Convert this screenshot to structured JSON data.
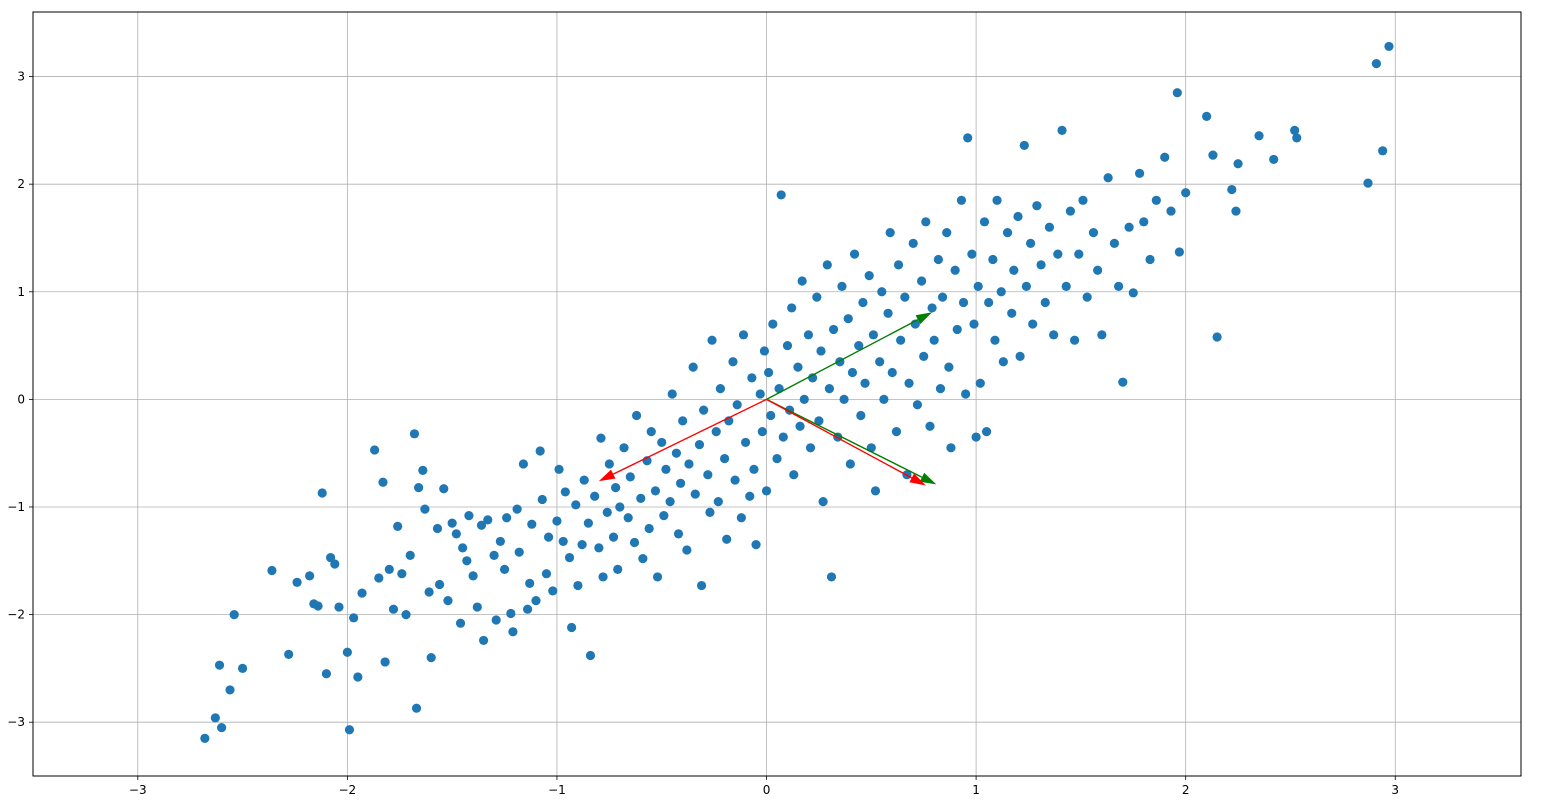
{
  "chart_data": {
    "type": "scatter",
    "title": "",
    "xlabel": "",
    "ylabel": "",
    "xlim": [
      -3.5,
      3.6
    ],
    "ylim": [
      -3.5,
      3.6
    ],
    "xticks": [
      -3,
      -2,
      -1,
      0,
      1,
      2,
      3
    ],
    "yticks": [
      -3,
      -2,
      -1,
      0,
      1,
      2,
      3
    ],
    "grid": true,
    "series": [
      {
        "values": [
          [
            -2.68,
            -3.15
          ],
          [
            -2.63,
            -2.96
          ],
          [
            -2.6,
            -3.05
          ],
          [
            -2.61,
            -2.47
          ],
          [
            -2.56,
            -2.7
          ],
          [
            -2.54,
            -2.0
          ],
          [
            -2.5,
            -2.5
          ],
          [
            -2.36,
            -1.59
          ],
          [
            -2.28,
            -2.37
          ],
          [
            -2.24,
            -1.7
          ],
          [
            -2.18,
            -1.64
          ],
          [
            -2.16,
            -1.9
          ],
          [
            -2.14,
            -1.92
          ],
          [
            -2.12,
            -0.87
          ],
          [
            -2.1,
            -2.55
          ],
          [
            -2.08,
            -1.47
          ],
          [
            -2.06,
            -1.53
          ],
          [
            -2.04,
            -1.93
          ],
          [
            -2.0,
            -2.35
          ],
          [
            -1.99,
            -3.07
          ],
          [
            -1.97,
            -2.03
          ],
          [
            -1.95,
            -2.58
          ],
          [
            -1.93,
            -1.8
          ],
          [
            -1.87,
            -0.47
          ],
          [
            -1.85,
            -1.66
          ],
          [
            -1.83,
            -0.77
          ],
          [
            -1.82,
            -2.44
          ],
          [
            -1.8,
            -1.58
          ],
          [
            -1.78,
            -1.95
          ],
          [
            -1.76,
            -1.18
          ],
          [
            -1.74,
            -1.62
          ],
          [
            -1.72,
            -2.0
          ],
          [
            -1.7,
            -1.45
          ],
          [
            -1.68,
            -0.32
          ],
          [
            -1.67,
            -2.87
          ],
          [
            -1.66,
            -0.82
          ],
          [
            -1.64,
            -0.66
          ],
          [
            -1.63,
            -1.02
          ],
          [
            -1.61,
            -1.79
          ],
          [
            -1.6,
            -2.4
          ],
          [
            -1.57,
            -1.2
          ],
          [
            -1.56,
            -1.72
          ],
          [
            -1.54,
            -0.83
          ],
          [
            -1.52,
            -1.87
          ],
          [
            -1.5,
            -1.15
          ],
          [
            -1.48,
            -1.25
          ],
          [
            -1.46,
            -2.08
          ],
          [
            -1.45,
            -1.38
          ],
          [
            -1.43,
            -1.5
          ],
          [
            -1.42,
            -1.08
          ],
          [
            -1.4,
            -1.64
          ],
          [
            -1.38,
            -1.93
          ],
          [
            -1.36,
            -1.17
          ],
          [
            -1.35,
            -2.24
          ],
          [
            -1.33,
            -1.12
          ],
          [
            -1.3,
            -1.45
          ],
          [
            -1.29,
            -2.05
          ],
          [
            -1.27,
            -1.32
          ],
          [
            -1.25,
            -1.58
          ],
          [
            -1.24,
            -1.1
          ],
          [
            -1.22,
            -1.99
          ],
          [
            -1.21,
            -2.16
          ],
          [
            -1.19,
            -1.02
          ],
          [
            -1.18,
            -1.42
          ],
          [
            -1.16,
            -0.6
          ],
          [
            -1.14,
            -1.95
          ],
          [
            -1.13,
            -1.71
          ],
          [
            -1.12,
            -1.16
          ],
          [
            -1.1,
            -1.87
          ],
          [
            -1.08,
            -0.48
          ],
          [
            -1.07,
            -0.93
          ],
          [
            -1.05,
            -1.62
          ],
          [
            -1.04,
            -1.28
          ],
          [
            -1.02,
            -1.78
          ],
          [
            -1.0,
            -1.13
          ],
          [
            -0.99,
            -0.65
          ],
          [
            -0.97,
            -1.32
          ],
          [
            -0.96,
            -0.86
          ],
          [
            -0.94,
            -1.47
          ],
          [
            -0.93,
            -2.12
          ],
          [
            -0.91,
            -0.98
          ],
          [
            -0.9,
            -1.73
          ],
          [
            -0.88,
            -1.35
          ],
          [
            -0.87,
            -0.75
          ],
          [
            -0.85,
            -1.15
          ],
          [
            -0.84,
            -2.38
          ],
          [
            -0.82,
            -0.9
          ],
          [
            -0.8,
            -1.38
          ],
          [
            -0.79,
            -0.36
          ],
          [
            -0.78,
            -1.65
          ],
          [
            -0.76,
            -1.05
          ],
          [
            -0.75,
            -0.6
          ],
          [
            -0.73,
            -1.28
          ],
          [
            -0.72,
            -0.82
          ],
          [
            -0.71,
            -1.58
          ],
          [
            -0.7,
            -1.0
          ],
          [
            -0.68,
            -0.45
          ],
          [
            -0.66,
            -1.1
          ],
          [
            -0.65,
            -0.72
          ],
          [
            -0.63,
            -1.33
          ],
          [
            -0.62,
            -0.15
          ],
          [
            -0.6,
            -0.92
          ],
          [
            -0.59,
            -1.48
          ],
          [
            -0.57,
            -0.57
          ],
          [
            -0.56,
            -1.2
          ],
          [
            -0.55,
            -0.3
          ],
          [
            -0.53,
            -0.85
          ],
          [
            -0.52,
            -1.65
          ],
          [
            -0.5,
            -0.4
          ],
          [
            -0.49,
            -1.08
          ],
          [
            -0.48,
            -0.65
          ],
          [
            -0.46,
            -0.95
          ],
          [
            -0.45,
            0.05
          ],
          [
            -0.43,
            -0.5
          ],
          [
            -0.42,
            -1.25
          ],
          [
            -0.41,
            -0.78
          ],
          [
            -0.4,
            -0.2
          ],
          [
            -0.38,
            -1.4
          ],
          [
            -0.37,
            -0.6
          ],
          [
            -0.35,
            0.3
          ],
          [
            -0.34,
            -0.88
          ],
          [
            -0.32,
            -0.42
          ],
          [
            -0.31,
            -1.73
          ],
          [
            -0.3,
            -0.1
          ],
          [
            -0.28,
            -0.7
          ],
          [
            -0.27,
            -1.05
          ],
          [
            -0.26,
            0.55
          ],
          [
            -0.24,
            -0.3
          ],
          [
            -0.23,
            -0.95
          ],
          [
            -0.22,
            0.1
          ],
          [
            -0.2,
            -0.55
          ],
          [
            -0.19,
            -1.3
          ],
          [
            -0.18,
            -0.2
          ],
          [
            -0.16,
            0.35
          ],
          [
            -0.15,
            -0.75
          ],
          [
            -0.14,
            -0.05
          ],
          [
            -0.12,
            -1.1
          ],
          [
            -0.11,
            0.6
          ],
          [
            -0.1,
            -0.4
          ],
          [
            -0.08,
            -0.9
          ],
          [
            -0.07,
            0.2
          ],
          [
            -0.06,
            -0.65
          ],
          [
            -0.05,
            -1.35
          ],
          [
            -0.03,
            0.05
          ],
          [
            -0.02,
            -0.3
          ],
          [
            -0.01,
            0.45
          ],
          [
            0.0,
            -0.85
          ],
          [
            0.01,
            0.25
          ],
          [
            0.02,
            -0.15
          ],
          [
            0.03,
            0.7
          ],
          [
            0.05,
            -0.55
          ],
          [
            0.06,
            0.1
          ],
          [
            0.07,
            1.9
          ],
          [
            0.08,
            -0.35
          ],
          [
            0.1,
            0.5
          ],
          [
            0.11,
            -0.1
          ],
          [
            0.12,
            0.85
          ],
          [
            0.13,
            -0.7
          ],
          [
            0.15,
            0.3
          ],
          [
            0.16,
            -0.25
          ],
          [
            0.17,
            1.1
          ],
          [
            0.18,
            0.0
          ],
          [
            0.2,
            0.6
          ],
          [
            0.21,
            -0.45
          ],
          [
            0.22,
            0.2
          ],
          [
            0.24,
            0.95
          ],
          [
            0.25,
            -0.2
          ],
          [
            0.26,
            0.45
          ],
          [
            0.27,
            -0.95
          ],
          [
            0.29,
            1.25
          ],
          [
            0.3,
            0.1
          ],
          [
            0.31,
            -1.65
          ],
          [
            0.32,
            0.65
          ],
          [
            0.34,
            -0.35
          ],
          [
            0.35,
            0.35
          ],
          [
            0.36,
            1.05
          ],
          [
            0.37,
            0.0
          ],
          [
            0.39,
            0.75
          ],
          [
            0.4,
            -0.6
          ],
          [
            0.41,
            0.25
          ],
          [
            0.42,
            1.35
          ],
          [
            0.44,
            0.5
          ],
          [
            0.45,
            -0.15
          ],
          [
            0.46,
            0.9
          ],
          [
            0.47,
            0.15
          ],
          [
            0.49,
            1.15
          ],
          [
            0.5,
            -0.45
          ],
          [
            0.51,
            0.6
          ],
          [
            0.52,
            -0.85
          ],
          [
            0.54,
            0.35
          ],
          [
            0.55,
            1.0
          ],
          [
            0.56,
            0.0
          ],
          [
            0.58,
            0.8
          ],
          [
            0.59,
            1.55
          ],
          [
            0.6,
            0.25
          ],
          [
            0.62,
            -0.3
          ],
          [
            0.63,
            1.25
          ],
          [
            0.64,
            0.55
          ],
          [
            0.66,
            0.95
          ],
          [
            0.67,
            -0.7
          ],
          [
            0.68,
            0.15
          ],
          [
            0.7,
            1.45
          ],
          [
            0.71,
            0.7
          ],
          [
            0.72,
            -0.05
          ],
          [
            0.74,
            1.1
          ],
          [
            0.75,
            0.4
          ],
          [
            0.76,
            1.65
          ],
          [
            0.78,
            -0.25
          ],
          [
            0.79,
            0.85
          ],
          [
            0.8,
            0.55
          ],
          [
            0.82,
            1.3
          ],
          [
            0.83,
            0.1
          ],
          [
            0.84,
            0.95
          ],
          [
            0.86,
            1.55
          ],
          [
            0.87,
            0.3
          ],
          [
            0.88,
            -0.45
          ],
          [
            0.9,
            1.2
          ],
          [
            0.91,
            0.65
          ],
          [
            0.93,
            1.85
          ],
          [
            0.94,
            0.9
          ],
          [
            0.95,
            0.05
          ],
          [
            0.96,
            2.43
          ],
          [
            0.98,
            1.35
          ],
          [
            0.99,
            0.7
          ],
          [
            1.0,
            -0.35
          ],
          [
            1.01,
            1.05
          ],
          [
            1.02,
            0.15
          ],
          [
            1.04,
            1.65
          ],
          [
            1.05,
            -0.3
          ],
          [
            1.06,
            0.9
          ],
          [
            1.08,
            1.3
          ],
          [
            1.09,
            0.55
          ],
          [
            1.1,
            1.85
          ],
          [
            1.12,
            1.0
          ],
          [
            1.13,
            0.35
          ],
          [
            1.15,
            1.55
          ],
          [
            1.17,
            0.8
          ],
          [
            1.18,
            1.2
          ],
          [
            1.2,
            1.7
          ],
          [
            1.21,
            0.4
          ],
          [
            1.23,
            2.36
          ],
          [
            1.24,
            1.05
          ],
          [
            1.26,
            1.45
          ],
          [
            1.27,
            0.7
          ],
          [
            1.29,
            1.8
          ],
          [
            1.31,
            1.25
          ],
          [
            1.33,
            0.9
          ],
          [
            1.35,
            1.6
          ],
          [
            1.37,
            0.6
          ],
          [
            1.39,
            1.35
          ],
          [
            1.41,
            2.5
          ],
          [
            1.43,
            1.05
          ],
          [
            1.45,
            1.75
          ],
          [
            1.47,
            0.55
          ],
          [
            1.49,
            1.35
          ],
          [
            1.51,
            1.85
          ],
          [
            1.53,
            0.95
          ],
          [
            1.56,
            1.55
          ],
          [
            1.58,
            1.2
          ],
          [
            1.6,
            0.6
          ],
          [
            1.63,
            2.06
          ],
          [
            1.66,
            1.45
          ],
          [
            1.68,
            1.05
          ],
          [
            1.7,
            0.16
          ],
          [
            1.73,
            1.6
          ],
          [
            1.75,
            0.99
          ],
          [
            1.78,
            2.1
          ],
          [
            1.8,
            1.65
          ],
          [
            1.83,
            1.3
          ],
          [
            1.86,
            1.85
          ],
          [
            1.9,
            2.25
          ],
          [
            1.93,
            1.75
          ],
          [
            1.96,
            2.85
          ],
          [
            1.97,
            1.37
          ],
          [
            2.0,
            1.92
          ],
          [
            2.1,
            2.63
          ],
          [
            2.13,
            2.27
          ],
          [
            2.15,
            0.58
          ],
          [
            2.22,
            1.95
          ],
          [
            2.24,
            1.75
          ],
          [
            2.25,
            2.19
          ],
          [
            2.35,
            2.45
          ],
          [
            2.42,
            2.23
          ],
          [
            2.52,
            2.5
          ],
          [
            2.53,
            2.43
          ],
          [
            2.87,
            2.01
          ],
          [
            2.91,
            3.12
          ],
          [
            2.94,
            2.31
          ],
          [
            2.97,
            3.28
          ]
        ]
      }
    ],
    "arrows": [
      {
        "color": "#008000",
        "from": [
          0,
          0
        ],
        "to": [
          0.79,
          0.81
        ]
      },
      {
        "color": "#008000",
        "from": [
          0,
          0
        ],
        "to": [
          0.81,
          -0.79
        ]
      },
      {
        "color": "#ff0000",
        "from": [
          0,
          0
        ],
        "to": [
          -0.8,
          -0.76
        ]
      },
      {
        "color": "#ff0000",
        "from": [
          0,
          0
        ],
        "to": [
          0.76,
          -0.8
        ]
      }
    ],
    "colors": {
      "points": "#1f77b4",
      "grid": "#b0b0b0",
      "axes": "#000000"
    }
  }
}
